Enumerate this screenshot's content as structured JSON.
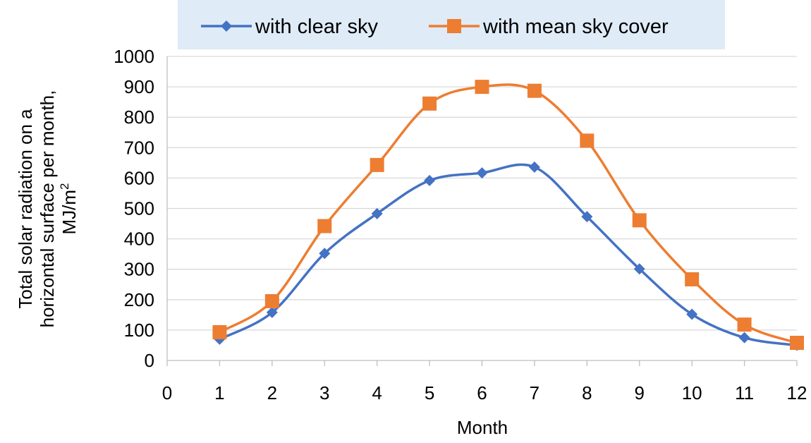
{
  "chart_data": {
    "type": "line",
    "xlabel": "Month",
    "ylabel_lines": [
      "Total solar radiation on a",
      "horizontal surface per month,"
    ],
    "ylabel_unit": "MJ/m",
    "ylabel_unit_sup": "2",
    "xlim": [
      0,
      12
    ],
    "ylim": [
      0,
      1000
    ],
    "x_ticks": [
      0,
      1,
      2,
      3,
      4,
      5,
      6,
      7,
      8,
      9,
      10,
      11,
      12
    ],
    "y_ticks": [
      0,
      100,
      200,
      300,
      400,
      500,
      600,
      700,
      800,
      900,
      1000
    ],
    "grid": "horizontal",
    "legend_position": "top",
    "smooth": true,
    "x": [
      1,
      2,
      3,
      4,
      5,
      6,
      7,
      8,
      9,
      10,
      11,
      12
    ],
    "series": [
      {
        "name": "with clear sky",
        "color": "#4472c4",
        "marker": "diamond",
        "values": [
          70,
          158,
          352,
          483,
          592,
          617,
          636,
          473,
          301,
          152,
          75,
          50
        ]
      },
      {
        "name": "with mean sky cover",
        "color": "#ed7d31",
        "marker": "square",
        "values": [
          93,
          195,
          442,
          643,
          845,
          900,
          887,
          723,
          461,
          267,
          118,
          58
        ]
      }
    ]
  }
}
